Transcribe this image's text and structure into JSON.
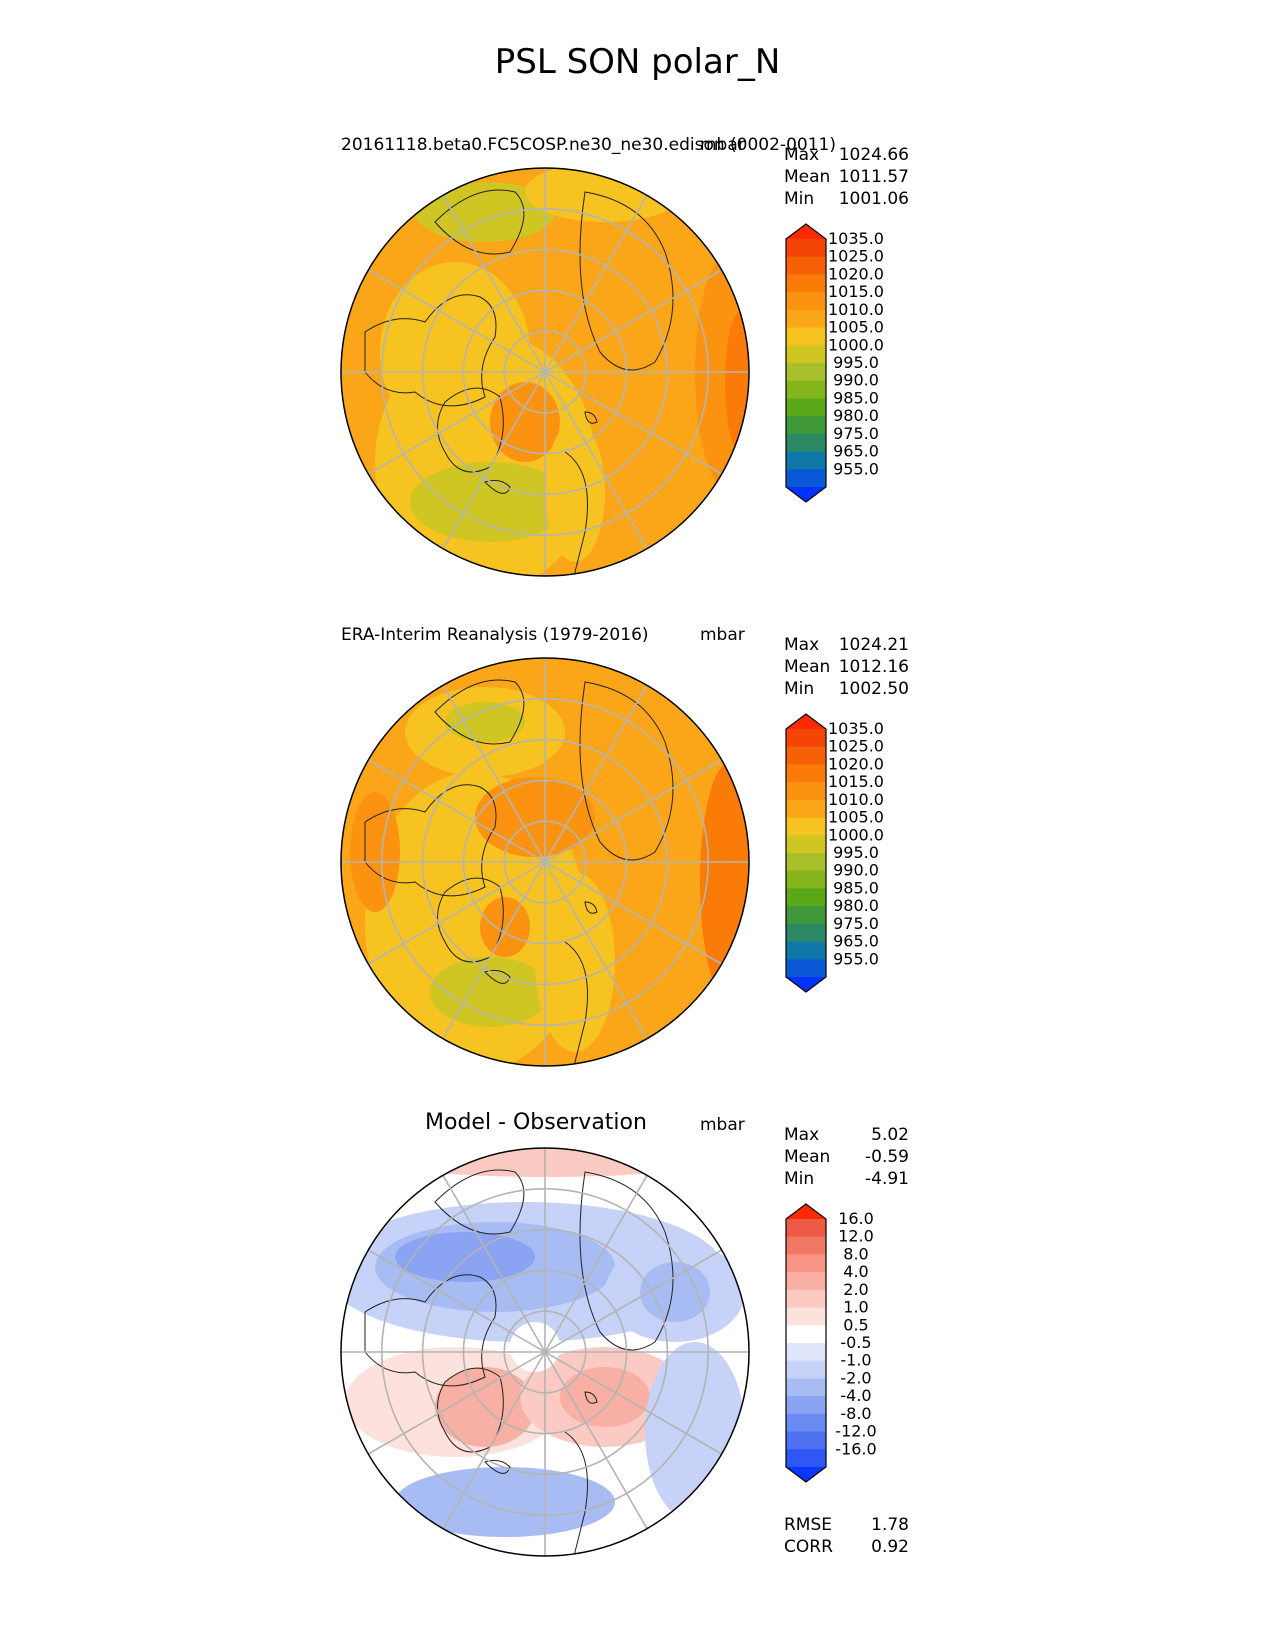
{
  "figure": {
    "title": "PSL SON polar_N"
  },
  "colors": {
    "psl_levels": [
      "#0033ff",
      "#0b58d6",
      "#0f78a8",
      "#2b8a63",
      "#3f9938",
      "#5aa818",
      "#84b51d",
      "#a9c02a",
      "#d0c623",
      "#f6c321",
      "#fba618",
      "#fb9310",
      "#fb7b08",
      "#f66107",
      "#f54506",
      "#ff2a00"
    ],
    "diff_levels": [
      "#0b36ff",
      "#2e57f5",
      "#4e72f2",
      "#6a8bf1",
      "#8aa3f2",
      "#a8bcf4",
      "#c6d2f7",
      "#dfe6fb",
      "#ffffff",
      "#fde1dc",
      "#fbcac2",
      "#f9b0a4",
      "#f79585",
      "#f27866",
      "#ee5a45",
      "#ff2a00"
    ],
    "grid": "#b4b4b4",
    "coast": "#222222"
  },
  "panels": [
    {
      "id": "model",
      "title": "20161118.beta0.FC5COSP.ne30_ne30.edison (0002-0011)",
      "units": "mbar",
      "stats": [
        {
          "label": "Max",
          "value": "1024.66"
        },
        {
          "label": "Mean",
          "value": "1011.57"
        },
        {
          "label": "Min",
          "value": "1001.06"
        }
      ],
      "colorbar_labels": [
        "955.0",
        "965.0",
        "975.0",
        "980.0",
        "985.0",
        "990.0",
        "995.0",
        "1000.0",
        "1005.0",
        "1010.0",
        "1015.0",
        "1020.0",
        "1025.0",
        "1035.0"
      ]
    },
    {
      "id": "obs",
      "title": "ERA-Interim Reanalysis (1979-2016)",
      "units": "mbar",
      "stats": [
        {
          "label": "Max",
          "value": "1024.21"
        },
        {
          "label": "Mean",
          "value": "1012.16"
        },
        {
          "label": "Min",
          "value": "1002.50"
        }
      ],
      "colorbar_labels": [
        "955.0",
        "965.0",
        "975.0",
        "980.0",
        "985.0",
        "990.0",
        "995.0",
        "1000.0",
        "1005.0",
        "1010.0",
        "1015.0",
        "1020.0",
        "1025.0",
        "1035.0"
      ]
    },
    {
      "id": "diff",
      "title": "Model - Observation",
      "units": "mbar",
      "stats": [
        {
          "label": "Max",
          "value": "5.02"
        },
        {
          "label": "Mean",
          "value": "-0.59"
        },
        {
          "label": "Min",
          "value": "-4.91"
        }
      ],
      "colorbar_labels": [
        "-16.0",
        "-12.0",
        "-8.0",
        "-4.0",
        "-2.0",
        "-1.0",
        "-0.5",
        "0.5",
        "1.0",
        "2.0",
        "4.0",
        "8.0",
        "12.0",
        "16.0"
      ],
      "metrics": [
        {
          "label": "RMSE",
          "value": "1.78"
        },
        {
          "label": "CORR",
          "value": "0.92"
        }
      ]
    }
  ],
  "chart_data": [
    {
      "type": "heatmap",
      "title": "20161118.beta0.FC5COSP.ne30_ne30.edison (0002-0011)",
      "projection": "north polar stereographic",
      "units": "mbar",
      "contour_levels": [
        955,
        965,
        975,
        980,
        985,
        990,
        995,
        1000,
        1005,
        1010,
        1015,
        1020,
        1025,
        1035
      ],
      "max": 1024.66,
      "mean": 1011.57,
      "min": 1001.06
    },
    {
      "type": "heatmap",
      "title": "ERA-Interim Reanalysis (1979-2016)",
      "projection": "north polar stereographic",
      "units": "mbar",
      "contour_levels": [
        955,
        965,
        975,
        980,
        985,
        990,
        995,
        1000,
        1005,
        1010,
        1015,
        1020,
        1025,
        1035
      ],
      "max": 1024.21,
      "mean": 1012.16,
      "min": 1002.5
    },
    {
      "type": "heatmap",
      "title": "Model - Observation",
      "projection": "north polar stereographic",
      "units": "mbar",
      "contour_levels": [
        -16,
        -12,
        -8,
        -4,
        -2,
        -1,
        -0.5,
        0.5,
        1,
        2,
        4,
        8,
        12,
        16
      ],
      "max": 5.02,
      "mean": -0.59,
      "min": -4.91,
      "rmse": 1.78,
      "corr": 0.92
    }
  ]
}
